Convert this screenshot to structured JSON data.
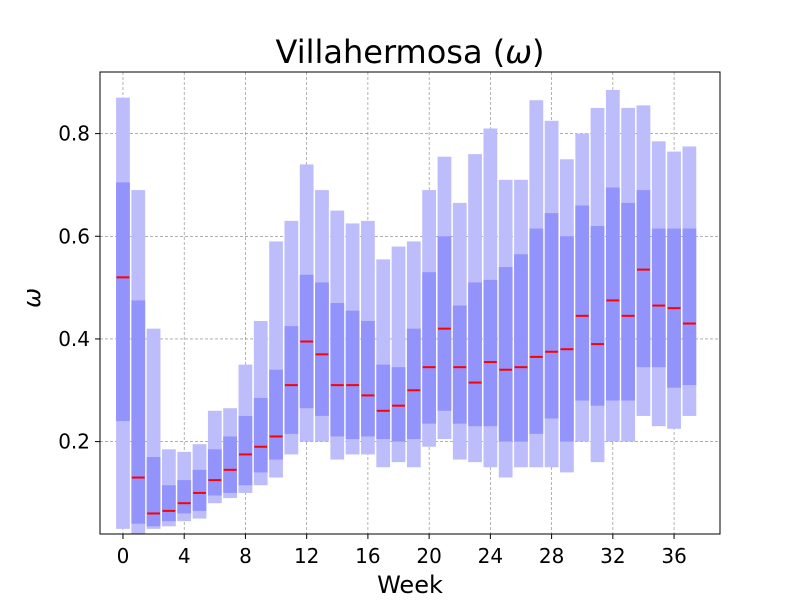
{
  "chart_data": {
    "type": "bar",
    "title": "Villahermosa (",
    "title_symbol": "ω",
    "title_suffix": ")",
    "xlabel": "Week",
    "ylabel": "ω",
    "xlim": [
      -1.5,
      39.0
    ],
    "ylim": [
      0.02,
      0.92
    ],
    "xticks": [
      0,
      4,
      8,
      12,
      16,
      20,
      24,
      28,
      32,
      36
    ],
    "yticks": [
      0.2,
      0.4,
      0.6,
      0.8
    ],
    "ytick_labels": [
      "0.2",
      "0.4",
      "0.6",
      "0.8"
    ],
    "grid": true,
    "colors": {
      "outer": "#bdbdfc",
      "inner": "#8c8cfb",
      "median": "#ff0000",
      "grid": "#808080"
    },
    "weeks": [
      0,
      1,
      2,
      3,
      4,
      5,
      6,
      7,
      8,
      9,
      10,
      11,
      12,
      13,
      14,
      15,
      16,
      17,
      18,
      19,
      20,
      21,
      22,
      23,
      24,
      25,
      26,
      27,
      28,
      29,
      30,
      31,
      32,
      33,
      34,
      35,
      36,
      37
    ],
    "outer_low": [
      0.03,
      0.02,
      0.03,
      0.035,
      0.045,
      0.05,
      0.08,
      0.09,
      0.1,
      0.115,
      0.13,
      0.175,
      0.2,
      0.2,
      0.165,
      0.175,
      0.175,
      0.15,
      0.16,
      0.15,
      0.19,
      0.205,
      0.165,
      0.16,
      0.15,
      0.13,
      0.15,
      0.15,
      0.15,
      0.14,
      0.2,
      0.16,
      0.2,
      0.2,
      0.25,
      0.23,
      0.225,
      0.25
    ],
    "inner_low": [
      0.24,
      0.04,
      0.035,
      0.045,
      0.06,
      0.065,
      0.095,
      0.1,
      0.115,
      0.14,
      0.165,
      0.215,
      0.265,
      0.25,
      0.21,
      0.205,
      0.21,
      0.205,
      0.2,
      0.205,
      0.235,
      0.26,
      0.235,
      0.23,
      0.23,
      0.2,
      0.2,
      0.215,
      0.245,
      0.2,
      0.28,
      0.27,
      0.28,
      0.28,
      0.345,
      0.345,
      0.305,
      0.31
    ],
    "inner_high": [
      0.705,
      0.475,
      0.17,
      0.115,
      0.125,
      0.145,
      0.185,
      0.21,
      0.25,
      0.285,
      0.34,
      0.425,
      0.525,
      0.51,
      0.47,
      0.455,
      0.435,
      0.35,
      0.345,
      0.42,
      0.53,
      0.6,
      0.465,
      0.51,
      0.515,
      0.54,
      0.565,
      0.615,
      0.645,
      0.6,
      0.66,
      0.62,
      0.695,
      0.665,
      0.69,
      0.615,
      0.615,
      0.615
    ],
    "outer_high": [
      0.87,
      0.69,
      0.42,
      0.185,
      0.18,
      0.195,
      0.26,
      0.265,
      0.35,
      0.435,
      0.59,
      0.63,
      0.74,
      0.69,
      0.65,
      0.625,
      0.63,
      0.555,
      0.58,
      0.59,
      0.69,
      0.755,
      0.665,
      0.76,
      0.81,
      0.71,
      0.71,
      0.865,
      0.825,
      0.75,
      0.8,
      0.85,
      0.885,
      0.85,
      0.855,
      0.785,
      0.765,
      0.775
    ],
    "medians": [
      0.52,
      0.13,
      0.06,
      0.065,
      0.08,
      0.1,
      0.125,
      0.145,
      0.175,
      0.19,
      0.21,
      0.31,
      0.395,
      0.37,
      0.31,
      0.31,
      0.29,
      0.26,
      0.27,
      0.3,
      0.345,
      0.42,
      0.345,
      0.315,
      0.355,
      0.34,
      0.345,
      0.365,
      0.375,
      0.38,
      0.445,
      0.39,
      0.475,
      0.445,
      0.535,
      0.465,
      0.46,
      0.43
    ]
  }
}
